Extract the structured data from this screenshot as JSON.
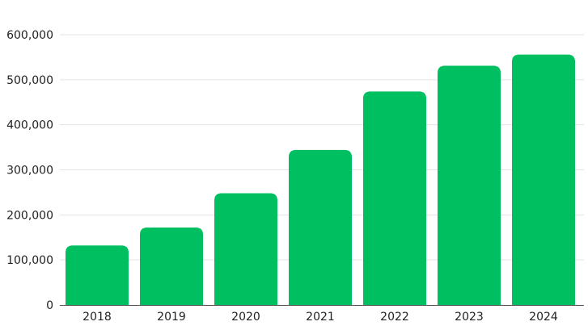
{
  "chart_data": {
    "type": "bar",
    "title": "",
    "xlabel": "",
    "ylabel": "",
    "categories": [
      "2018",
      "2019",
      "2020",
      "2021",
      "2022",
      "2023",
      "2024"
    ],
    "values": [
      132000,
      172000,
      248000,
      344000,
      474000,
      531000,
      556000
    ],
    "ylim": [
      0,
      600000
    ],
    "y_ticks": [
      0,
      100000,
      200000,
      300000,
      400000,
      500000,
      600000
    ],
    "y_tick_labels": [
      "0",
      "100,000",
      "200,000",
      "300,000",
      "400,000",
      "500,000",
      "600,000"
    ],
    "grid": true,
    "legend": "none",
    "bar_color": "#00BF60",
    "grid_color": "#E3E3E3",
    "text_color": "#222222"
  }
}
